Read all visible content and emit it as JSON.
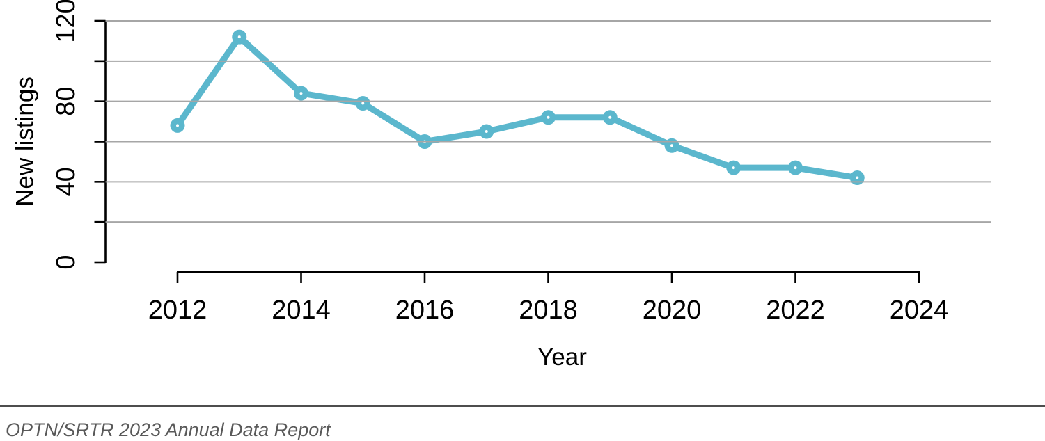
{
  "page": {
    "background": "#ffffff"
  },
  "colors": {
    "accent_line": "#5BB7CD",
    "marker_center_dot": "#ffffff",
    "gridline": "#a6a6a6",
    "axis": "#000000",
    "tick_label": "#000000",
    "axis_title": "#000000",
    "footer_rule": "#4d4d4d",
    "footer_text": "#595959"
  },
  "footer": {
    "source_text": "OPTN/SRTR 2023 Annual Data Report"
  },
  "chart_data": {
    "type": "line",
    "title": "",
    "xlabel": "Year",
    "ylabel": "New listings",
    "x": [
      2012,
      2013,
      2014,
      2015,
      2016,
      2017,
      2018,
      2019,
      2020,
      2021,
      2022,
      2023
    ],
    "series": [
      {
        "name": "New listings",
        "values": [
          68,
          112,
          84,
          79,
          60,
          65,
          72,
          72,
          58,
          47,
          47,
          42
        ]
      }
    ],
    "xlim": [
      2012,
      2024
    ],
    "ylim": [
      0,
      120
    ],
    "xticks": [
      2012,
      2014,
      2016,
      2018,
      2020,
      2022,
      2024
    ],
    "yticks": [
      0,
      20,
      40,
      60,
      80,
      100,
      120
    ],
    "ytick_labeled": [
      0,
      40,
      80,
      120
    ],
    "grid": "horizontal gridlines at 20,40,60,80,100,120 (none at 0), drawn over data",
    "legend_position": "none",
    "marker": "filled circle with tiny white center dot",
    "y_axis_tick_label_rotation_deg": -90,
    "y_axis_title_rotation_deg": -90
  }
}
